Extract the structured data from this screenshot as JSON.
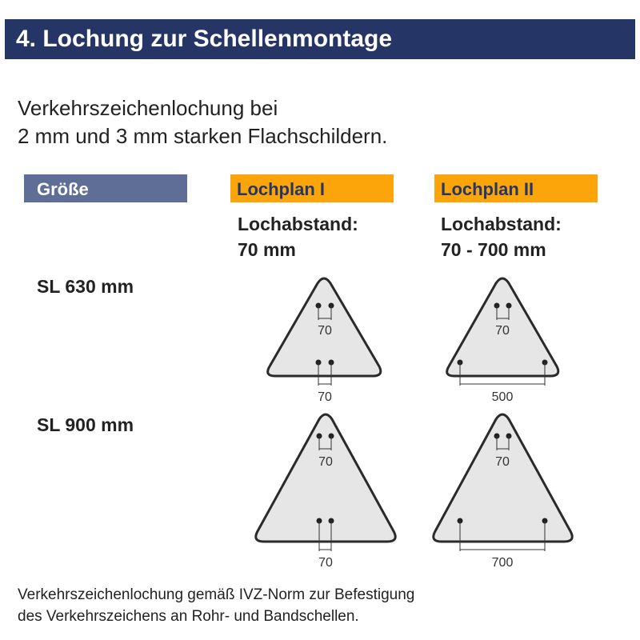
{
  "title": "4. Lochung zur Schellenmontage",
  "intro": [
    "Verkehrszeichenlochung bei",
    "2 mm und 3 mm starken Flachschildern."
  ],
  "headers": {
    "size": "Größe",
    "plan1": "Lochplan I",
    "plan2": "Lochplan II"
  },
  "plan1": {
    "label": "Lochabstand:",
    "value": "70 mm"
  },
  "plan2": {
    "label": "Lochabstand:",
    "value": "70 - 700 mm"
  },
  "rows": [
    {
      "size": "SL 630 mm",
      "plan1": {
        "top": "70",
        "bottom": "70"
      },
      "plan2": {
        "top": "70",
        "bottom": "500"
      }
    },
    {
      "size": "SL 900 mm",
      "plan1": {
        "top": "70",
        "bottom": "70"
      },
      "plan2": {
        "top": "70",
        "bottom": "700"
      }
    }
  ],
  "footer": [
    "Verkehrszeichenlochung gemäß IVZ-Norm zur Befestigung",
    "des Verkehrszeichens an Rohr- und Bandschellen."
  ],
  "colors": {
    "title_bg": "#243566",
    "size_header": "#5f6e96",
    "plan_header": "#fca50a"
  }
}
